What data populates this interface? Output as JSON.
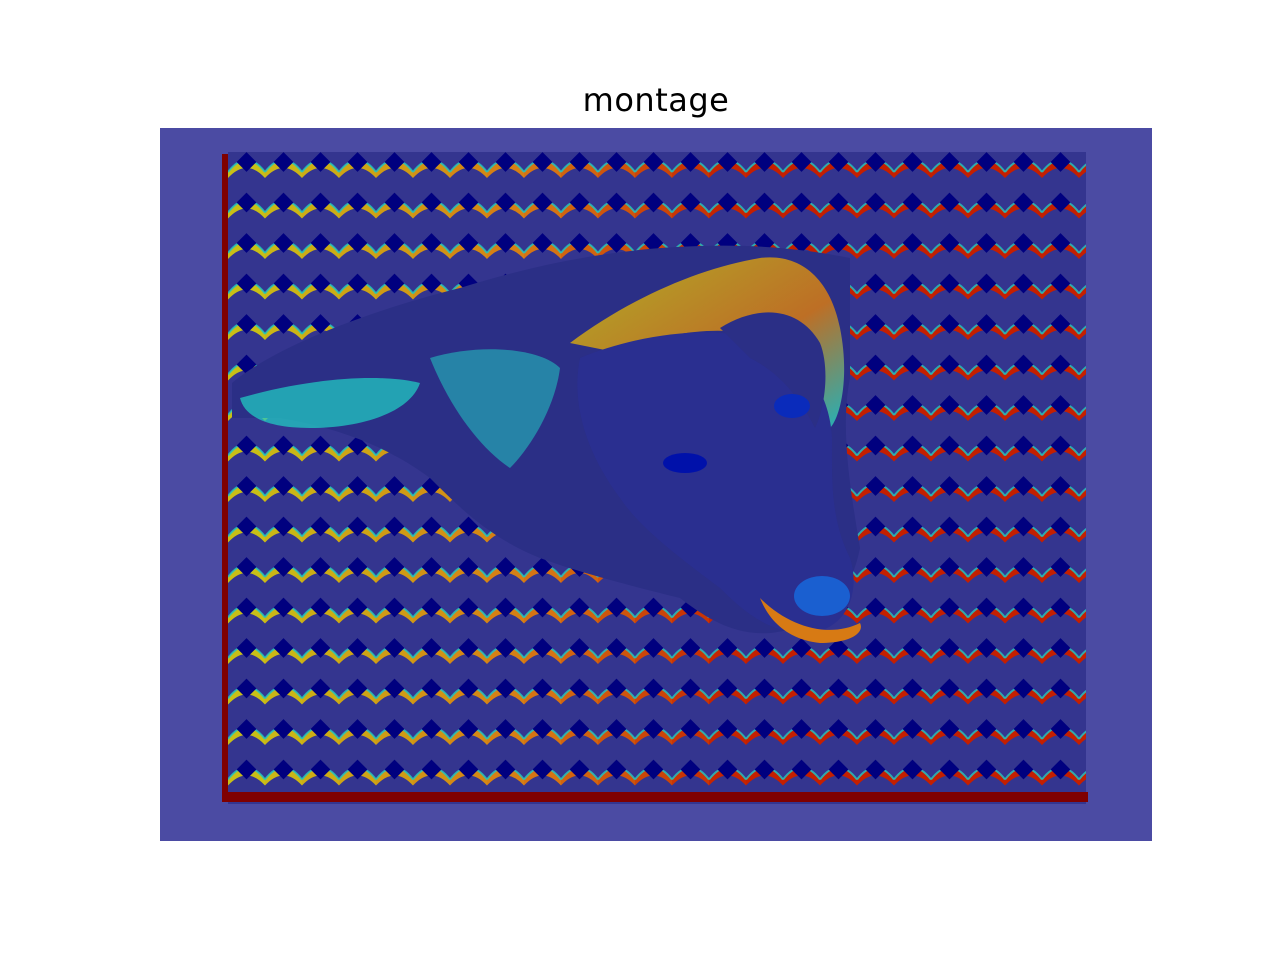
{
  "figure": {
    "title": "montage"
  },
  "image": {
    "description_icon": "dog-photo-colormap-montage",
    "colormap": "jet",
    "colors": {
      "background": "#4b4ba3",
      "dark_blue": "#2b2f86",
      "navy": "#00007f",
      "cyan": "#22c9c2",
      "yellow": "#c8c316",
      "orange": "#d77a14",
      "red": "#c41f00",
      "dark_red": "#7f0000"
    }
  }
}
